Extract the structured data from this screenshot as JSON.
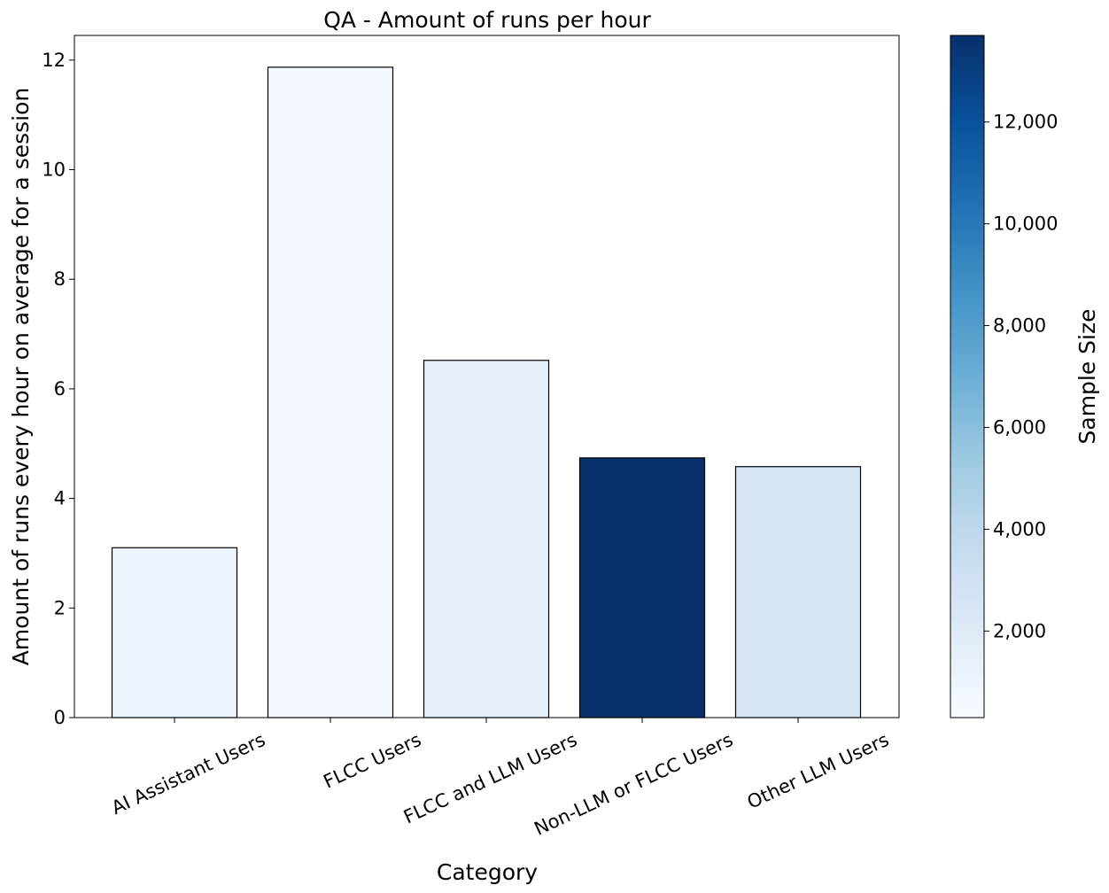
{
  "chart_data": {
    "type": "bar",
    "title": "QA - Amount of runs per hour",
    "xlabel": "Category",
    "ylabel": "Amount of runs every hour on average for a session",
    "categories": [
      "AI Assistant Users",
      "FLCC Users",
      "FLCC and LLM Users",
      "Non-LLM or FLCC Users",
      "Other LLM Users"
    ],
    "values": [
      3.1,
      11.87,
      6.52,
      4.74,
      4.58
    ],
    "sample_sizes": [
      1100,
      600,
      1600,
      13700,
      2500
    ],
    "ylim": [
      0,
      12.45
    ],
    "yticks": [
      0,
      2,
      4,
      6,
      8,
      10,
      12
    ],
    "ytick_labels": [
      "0",
      "2",
      "4",
      "6",
      "8",
      "10",
      "12"
    ],
    "grid": false,
    "colorbar": {
      "label": "Sample Size",
      "range": [
        300,
        13700
      ],
      "ticks": [
        2000,
        4000,
        6000,
        8000,
        10000,
        12000
      ],
      "tick_labels": [
        "2,000",
        "4,000",
        "6,000",
        "8,000",
        "10,000",
        "12,000"
      ],
      "colormap": "Blues",
      "colors": [
        "#f7fbff",
        "#deebf7",
        "#c6dbef",
        "#9ecae1",
        "#6baed6",
        "#4292c6",
        "#2171b5",
        "#08519c",
        "#08306b"
      ]
    }
  }
}
